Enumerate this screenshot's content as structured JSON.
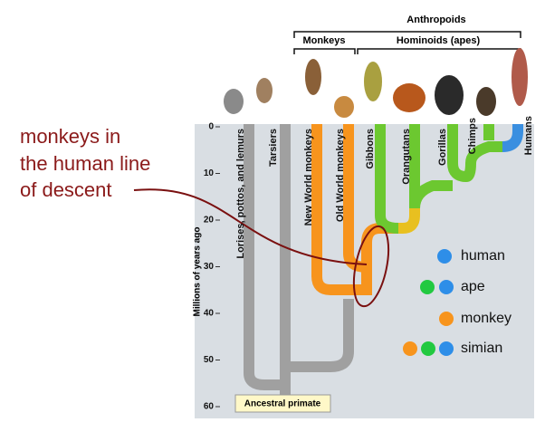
{
  "annotation": {
    "lines": [
      "monkeys in",
      "the human line",
      "of descent"
    ]
  },
  "groups": {
    "outer": "Anthropoids",
    "monkeys": "Monkeys",
    "apes": "Hominoids (apes)"
  },
  "axis": {
    "label": "Millions of years ago",
    "ticks": [
      0,
      10,
      20,
      30,
      40,
      50,
      60
    ]
  },
  "taxa": [
    "Lorises, pottos, and lemurs",
    "Tarsiers",
    "New World monkeys",
    "Old World monkeys",
    "Gibbons",
    "Orangutans",
    "Gorillas",
    "Chimps",
    "Humans"
  ],
  "root": "Ancestral primate",
  "legend": [
    "human",
    "ape",
    "monkey",
    "simian"
  ]
}
